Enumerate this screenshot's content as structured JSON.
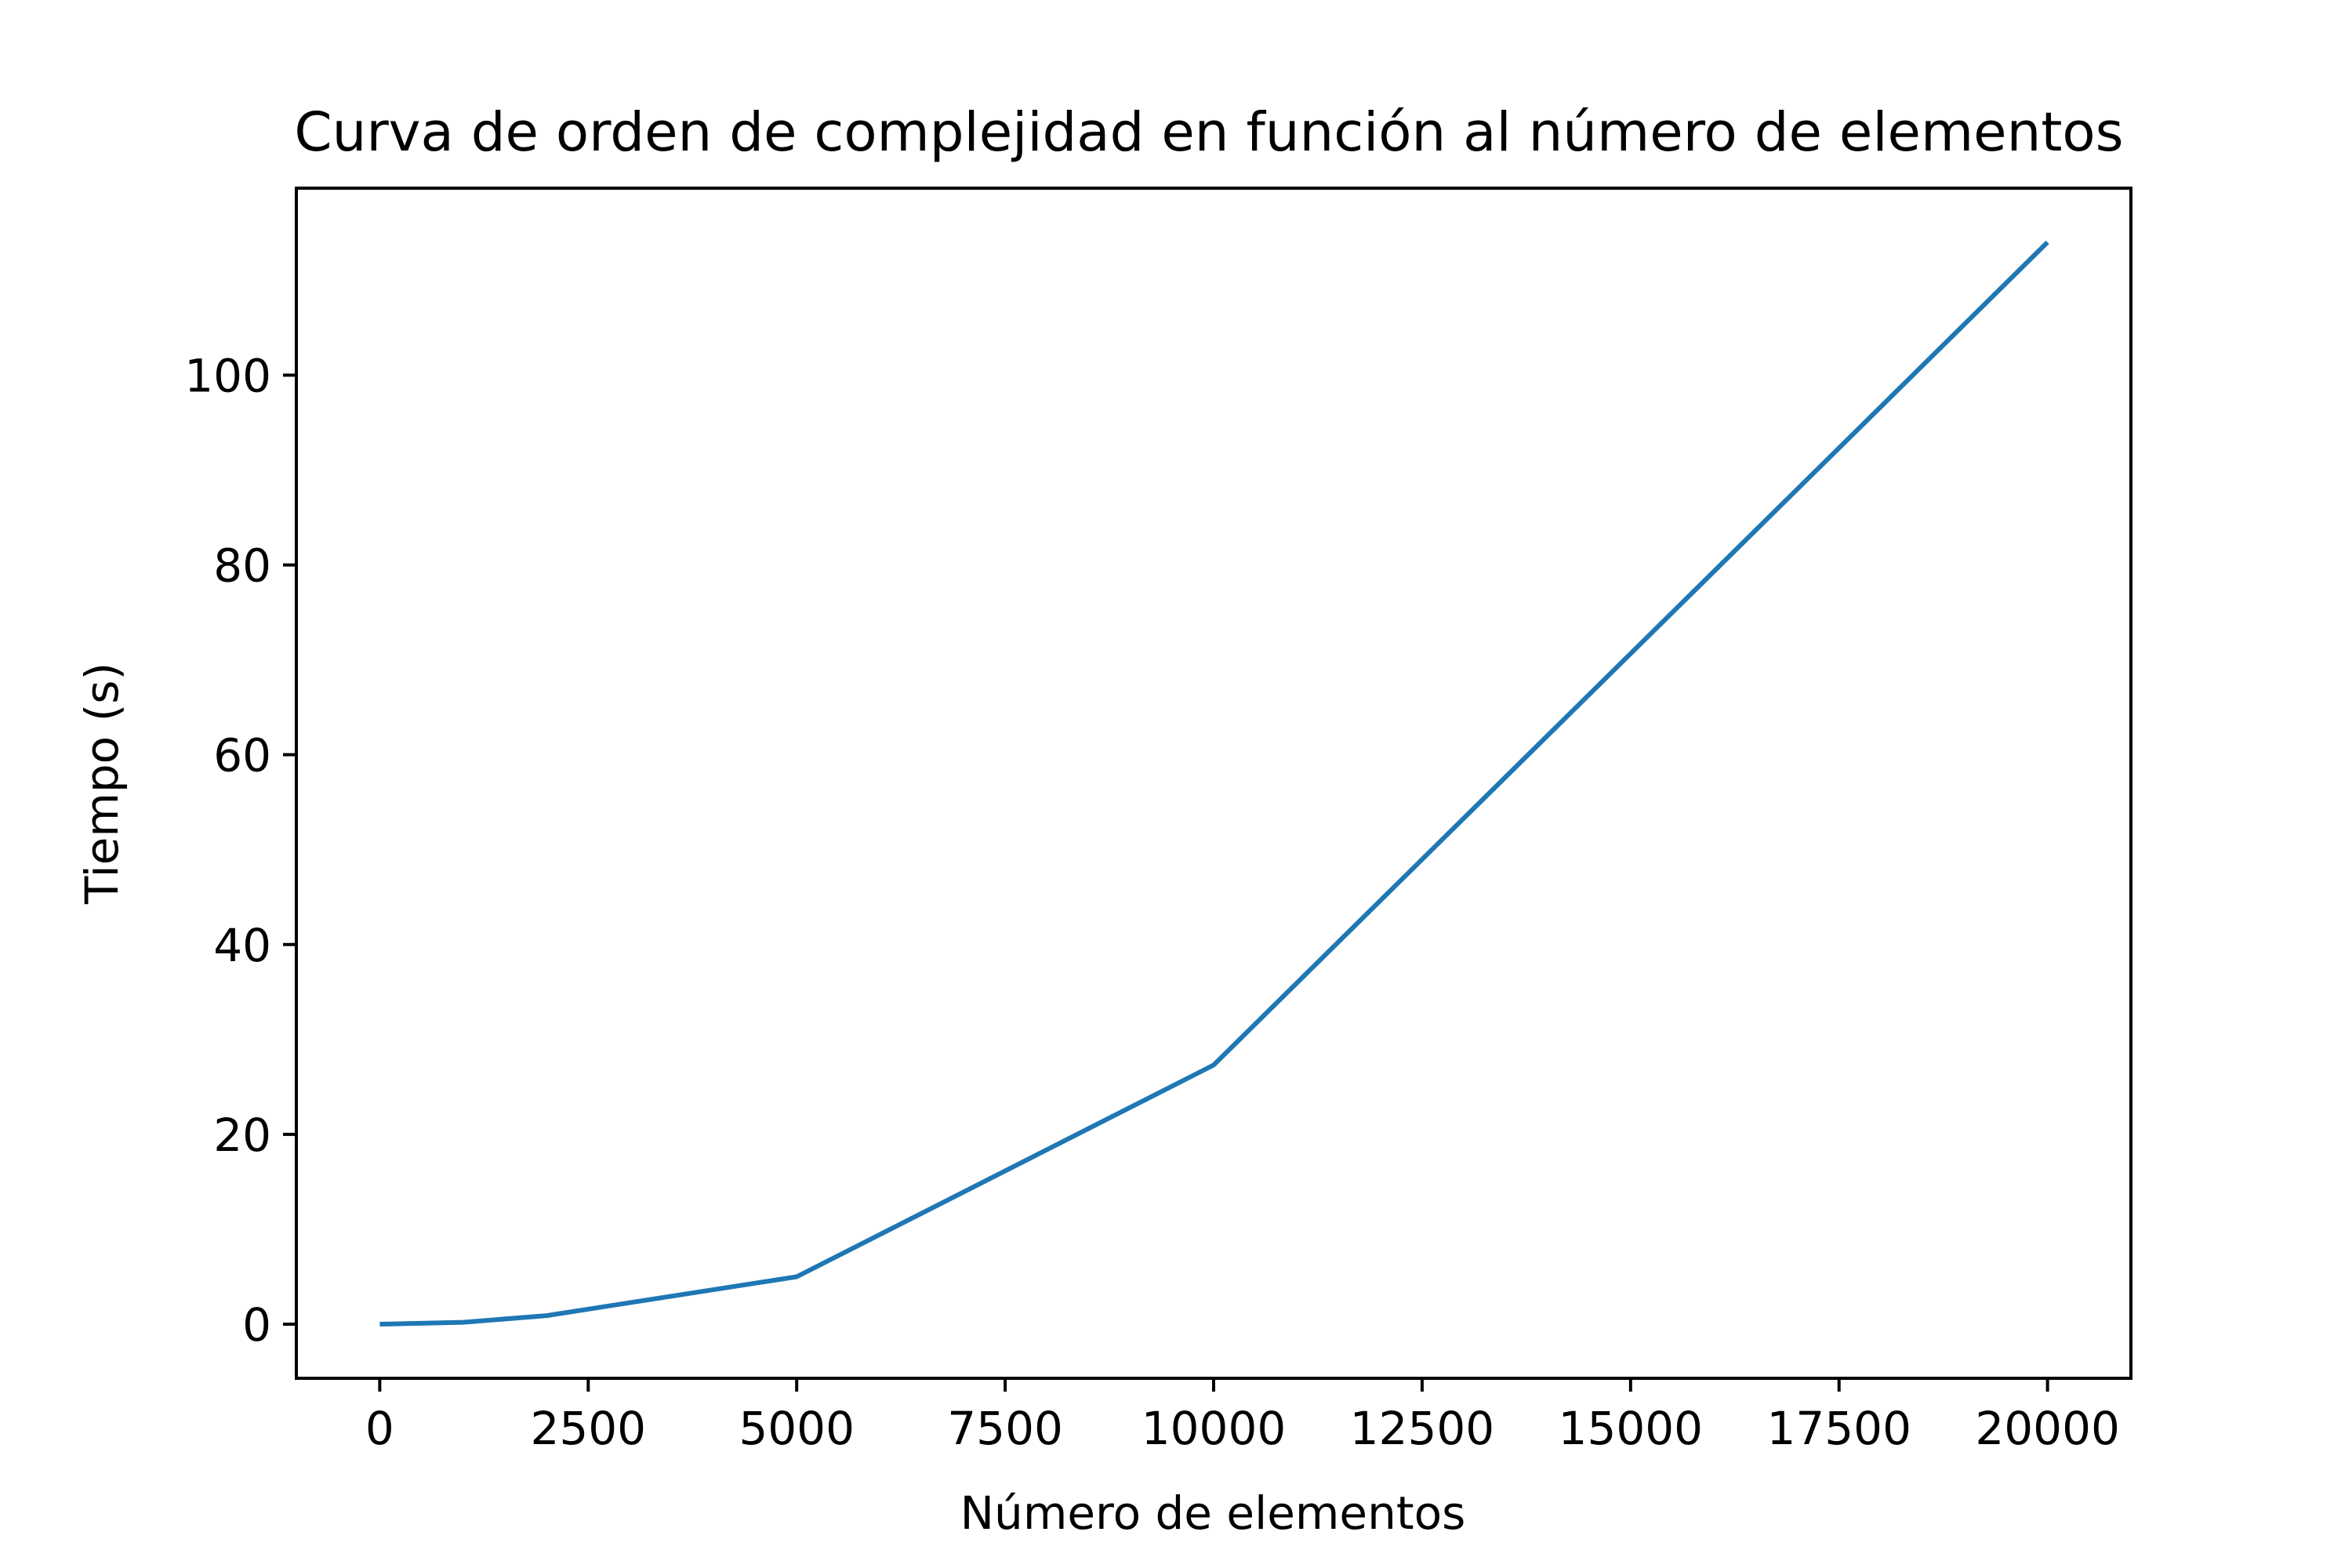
{
  "chart_data": {
    "type": "line",
    "title": "Curva de orden de complejidad en función al número de elementos",
    "xlabel": "Número de elementos",
    "ylabel": "Tiempo (s)",
    "xlim": [
      -1000,
      21000
    ],
    "ylim": [
      -5.7,
      119.7
    ],
    "xticks": [
      0,
      2500,
      5000,
      7500,
      10000,
      12500,
      15000,
      17500,
      20000
    ],
    "xtick_labels": [
      "0",
      "2500",
      "5000",
      "7500",
      "10000",
      "12500",
      "15000",
      "17500",
      "20000"
    ],
    "yticks": [
      0,
      20,
      40,
      60,
      80,
      100
    ],
    "ytick_labels": [
      "0",
      "20",
      "40",
      "60",
      "80",
      "100"
    ],
    "grid": false,
    "series": [
      {
        "name": "Tiempo",
        "color": "#1f77b4",
        "x": [
          0,
          1000,
          2000,
          5000,
          10000,
          20000
        ],
        "y": [
          0.0,
          0.2,
          0.9,
          5.0,
          27.3,
          114.0
        ]
      }
    ]
  }
}
